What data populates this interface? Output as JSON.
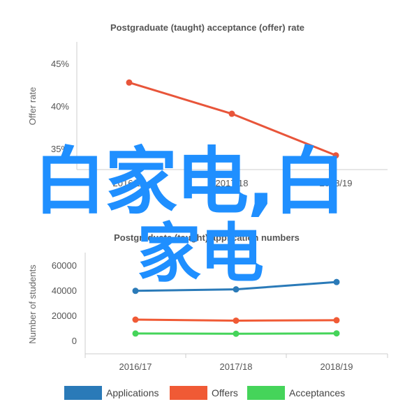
{
  "chart_data": [
    {
      "type": "line",
      "title": "Postgraduate (taught) acceptance (offer) rate",
      "ylabel": "Offer rate",
      "categories": [
        "2016/17",
        "2017/18",
        "2018/19"
      ],
      "yticks": [
        "35%",
        "40%",
        "45%"
      ],
      "ylim": [
        33.5,
        47
      ],
      "series": [
        {
          "values": [
            42.7,
            39.4,
            35.0
          ],
          "color": "#e8553a"
        }
      ],
      "grid": false
    },
    {
      "type": "line",
      "title": "Postgraduate (taught) application numbers",
      "ylabel": "Number of students",
      "categories": [
        "2016/17",
        "2017/18",
        "2018/19"
      ],
      "yticks": [
        "0",
        "20000",
        "40000",
        "60000"
      ],
      "ylim": [
        -10000,
        72000
      ],
      "series": [
        {
          "name": "Applications",
          "values": [
            40800,
            42000,
            48000
          ],
          "color": "#2a7ab8"
        },
        {
          "name": "Offers",
          "values": [
            17300,
            16500,
            16800
          ],
          "color": "#f05a35"
        },
        {
          "name": "Acceptances",
          "values": [
            6000,
            5800,
            6100
          ],
          "color": "#45d45a"
        }
      ],
      "legend": "bottom",
      "grid": false
    }
  ],
  "watermark": {
    "line1": "白家电,白",
    "line2": "家电"
  }
}
